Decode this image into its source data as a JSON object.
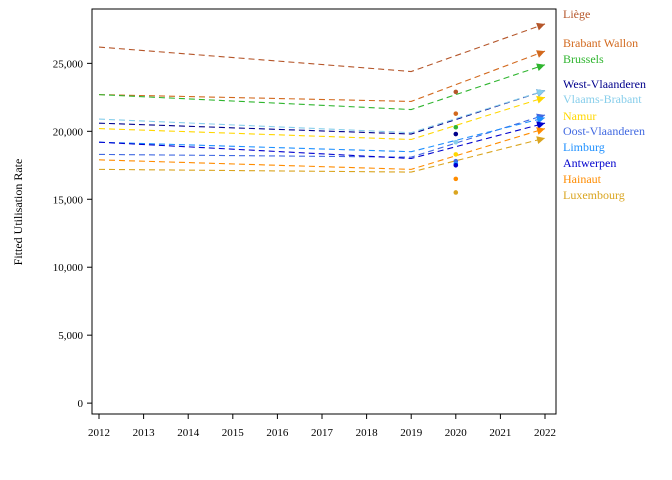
{
  "chart_data": {
    "type": "line",
    "title": "",
    "xlabel": "",
    "ylabel": "Fitted Utilisation Rate",
    "x": [
      2012,
      2013,
      2014,
      2015,
      2016,
      2017,
      2018,
      2019,
      2020,
      2021,
      2022
    ],
    "xlim": [
      2012,
      2022
    ],
    "ylim": [
      -800,
      29000
    ],
    "y_ticks": [
      0,
      5000,
      10000,
      15000,
      20000,
      25000
    ],
    "y_tick_labels": [
      "0",
      "5,000",
      "10,000",
      "15,000",
      "20,000",
      "25,000"
    ],
    "x_tick_labels": [
      "2012",
      "2013",
      "2014",
      "2015",
      "2016",
      "2017",
      "2018",
      "2019",
      "2020",
      "2021",
      "2022"
    ],
    "grid": false,
    "legend": "labels-right",
    "series": [
      {
        "name": "Liège",
        "color": "#b5562a",
        "points": [
          [
            2012,
            26200
          ],
          [
            2019,
            24400
          ],
          [
            2022,
            27900
          ]
        ],
        "observed_2020": 22900
      },
      {
        "name": "Brabant Wallon",
        "color": "#d2691e",
        "points": [
          [
            2012,
            22700
          ],
          [
            2019,
            22200
          ],
          [
            2022,
            25900
          ]
        ],
        "observed_2020": 21300
      },
      {
        "name": "Brussels",
        "color": "#2fb52f",
        "points": [
          [
            2012,
            22700
          ],
          [
            2019,
            21600
          ],
          [
            2022,
            24900
          ]
        ],
        "observed_2020": 20300
      },
      {
        "name": "West-Vlaanderen",
        "color": "#00008b",
        "points": [
          [
            2012,
            20600
          ],
          [
            2019,
            19800
          ],
          [
            2022,
            23000
          ]
        ],
        "observed_2020": 19800
      },
      {
        "name": "Vlaams-Brabant",
        "color": "#87ceeb",
        "points": [
          [
            2012,
            20900
          ],
          [
            2019,
            19900
          ],
          [
            2022,
            23000
          ]
        ],
        "observed_2020": 19200
      },
      {
        "name": "Namur",
        "color": "#ffd700",
        "points": [
          [
            2012,
            20200
          ],
          [
            2019,
            19400
          ],
          [
            2022,
            22500
          ]
        ],
        "observed_2020": 18300
      },
      {
        "name": "Oost-Vlaanderen",
        "color": "#4169e1",
        "points": [
          [
            2012,
            18300
          ],
          [
            2019,
            18100
          ],
          [
            2022,
            21200
          ]
        ],
        "observed_2020": 17800
      },
      {
        "name": "Limburg",
        "color": "#1e90ff",
        "points": [
          [
            2012,
            19200
          ],
          [
            2019,
            18500
          ],
          [
            2022,
            21000
          ]
        ],
        "observed_2020": 17600
      },
      {
        "name": "Antwerpen",
        "color": "#0000cd",
        "points": [
          [
            2012,
            19200
          ],
          [
            2019,
            18000
          ],
          [
            2022,
            20600
          ]
        ],
        "observed_2020": 17500
      },
      {
        "name": "Hainaut",
        "color": "#ff8c00",
        "points": [
          [
            2012,
            17900
          ],
          [
            2019,
            17200
          ],
          [
            2022,
            20200
          ]
        ],
        "observed_2020": 16500
      },
      {
        "name": "Luxembourg",
        "color": "#daa520",
        "points": [
          [
            2012,
            17200
          ],
          [
            2019,
            17000
          ],
          [
            2022,
            19500
          ]
        ],
        "observed_2020": 15500
      }
    ]
  }
}
